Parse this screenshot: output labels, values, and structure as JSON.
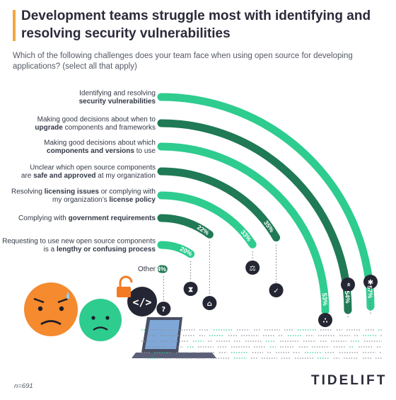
{
  "title": "Development teams struggle most with identifying and resolving security vulnerabilities",
  "subtitle": "Which of the following challenges does your team face when using open source for developing applications? (select all that apply)",
  "footnote": "n=691",
  "brand": "TIDELIFT",
  "colors": {
    "accent": "#f4a63f",
    "light_green": "#2ecc8f",
    "dark_green": "#1f7a55",
    "icon_dark": "#252633"
  },
  "chart_data": {
    "type": "bar",
    "title": "Development teams struggle most with identifying and resolving security vulnerabilities",
    "orientation": "radial",
    "categories": [
      [
        "Identifying and resolving",
        "security vulnerabilities"
      ],
      [
        "Making good decisions about when to",
        "upgrade components and frameworks"
      ],
      [
        "Making good decisions about which",
        "components and versions to use"
      ],
      [
        "Unclear which open source components",
        "are safe and approved at my organization"
      ],
      [
        "Resolving licensing issues or complying with",
        "my organization’s license policy"
      ],
      [
        "Complying with government requirements"
      ],
      [
        "Requesting to use new open source components",
        "is a lengthy or confusing process"
      ],
      [
        "Other"
      ]
    ],
    "values": [
      57,
      54,
      53,
      35,
      33,
      22,
      20,
      4
    ],
    "value_labels": [
      "57%",
      "54%",
      "53%",
      "35%",
      "33%",
      "22%",
      "20%",
      "4%"
    ],
    "icons": [
      "bug-icon",
      "chevrons-up-icon",
      "component-icon",
      "check-badge-icon",
      "scales-icon",
      "institution-icon",
      "hourglass-icon",
      "question-icon"
    ],
    "xlim": [
      0,
      100
    ],
    "grid": false,
    "legend": "none"
  }
}
